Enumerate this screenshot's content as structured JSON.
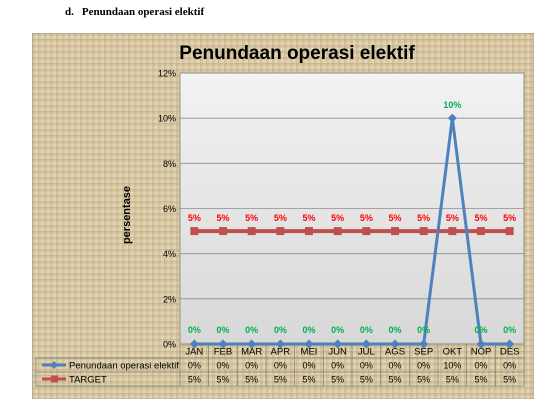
{
  "heading": {
    "label": "d.",
    "text": "Penundaan operasi elektif"
  },
  "chart_data": {
    "type": "line",
    "title": "Penundaan operasi elektif",
    "ylabel": "persentase",
    "xlabel": "",
    "ylim": [
      0,
      12
    ],
    "yticks": [
      "0%",
      "2%",
      "4%",
      "6%",
      "8%",
      "10%",
      "12%"
    ],
    "categories": [
      "JAN",
      "FEB",
      "MAR",
      "APR",
      "MEI",
      "JUN",
      "JUL",
      "AGS",
      "SEP",
      "OKT",
      "NOP",
      "DES"
    ],
    "series": [
      {
        "name": "Penundaan operasi elektif",
        "color": "#4f81bd",
        "marker": "diamond",
        "values": [
          0,
          0,
          0,
          0,
          0,
          0,
          0,
          0,
          0,
          10,
          0,
          0
        ],
        "labels": [
          "0%",
          "0%",
          "0%",
          "0%",
          "0%",
          "0%",
          "0%",
          "0%",
          "0%",
          "10%",
          "0%",
          "0%"
        ],
        "label_color": "#00b050"
      },
      {
        "name": "TARGET",
        "color": "#c0504d",
        "marker": "square",
        "values": [
          5,
          5,
          5,
          5,
          5,
          5,
          5,
          5,
          5,
          5,
          5,
          5
        ],
        "labels": [
          "5%",
          "5%",
          "5%",
          "5%",
          "5%",
          "5%",
          "5%",
          "5%",
          "5%",
          "5%",
          "5%",
          "5%"
        ],
        "label_color": "#ff0000"
      }
    ],
    "legend": "data-table",
    "grid": true
  }
}
